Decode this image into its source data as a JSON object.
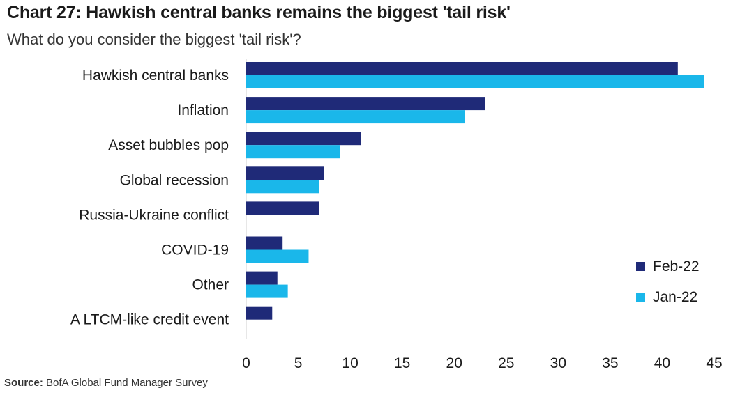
{
  "header": {
    "title": "Chart 27: Hawkish central banks remains the biggest 'tail risk'",
    "subtitle": "What do you consider the biggest 'tail risk'?"
  },
  "footer": {
    "source_label": "Source:",
    "source_text": " BofA Global Fund Manager Survey"
  },
  "chart_data": {
    "type": "bar",
    "orientation": "horizontal",
    "title": "Chart 27: Hawkish central banks remains the biggest 'tail risk'",
    "subtitle": "What do you consider the biggest 'tail risk'?",
    "xlabel": "",
    "ylabel": "",
    "categories": [
      "Hawkish central banks",
      "Inflation",
      "Asset bubbles pop",
      "Global recession",
      "Russia-Ukraine conflict",
      "COVID-19",
      "Other",
      "A LTCM-like credit event"
    ],
    "series": [
      {
        "name": "Feb-22",
        "color": "#1f2a78",
        "values": [
          41.5,
          23,
          11,
          7.5,
          7,
          3.5,
          3,
          2.5
        ]
      },
      {
        "name": "Jan-22",
        "color": "#1ab7ea",
        "values": [
          44,
          21,
          9,
          7,
          null,
          6,
          4,
          null
        ]
      }
    ],
    "xlim": [
      0,
      45
    ],
    "xticks": [
      0,
      5,
      10,
      15,
      20,
      25,
      30,
      35,
      40,
      45
    ],
    "grid": false,
    "legend_position": "bottom-right"
  }
}
